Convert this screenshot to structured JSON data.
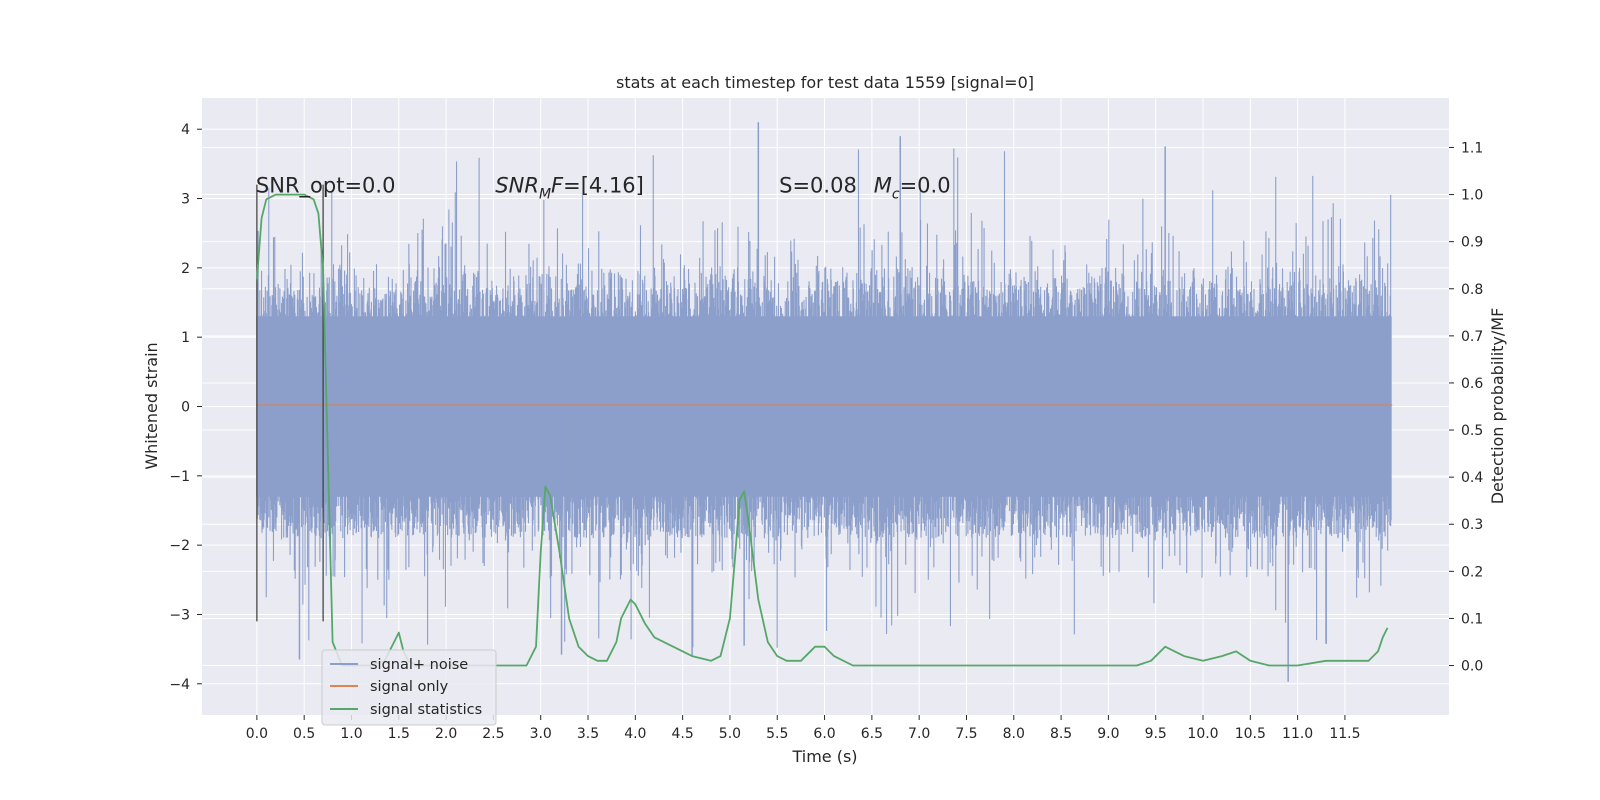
{
  "chart_data": {
    "type": "line",
    "title": "stats at each timestep for test data 1559 [signal=0]",
    "xlabel": "Time (s)",
    "ylabel": "Whitened strain",
    "y2label": "Detection probability/MF",
    "xlim": [
      -0.58,
      12.6
    ],
    "ylim": [
      -4.45,
      4.45
    ],
    "y2lim": [
      -0.105,
      1.205
    ],
    "x_ticks": [
      "0.0",
      "0.5",
      "1.0",
      "1.5",
      "2.0",
      "2.5",
      "3.0",
      "3.5",
      "4.0",
      "4.5",
      "5.0",
      "5.5",
      "6.0",
      "6.5",
      "7.0",
      "7.5",
      "8.0",
      "8.5",
      "9.0",
      "9.5",
      "10.0",
      "10.5",
      "11.0",
      "11.5"
    ],
    "y_ticks": [
      "4",
      "3",
      "2",
      "1",
      "0",
      "−1",
      "−2",
      "−3",
      "−4"
    ],
    "y2_ticks": [
      "1.1",
      "1.0",
      "0.9",
      "0.8",
      "0.7",
      "0.6",
      "0.5",
      "0.4",
      "0.3",
      "0.2",
      "0.1",
      "0.0"
    ],
    "grid": true,
    "legend_position": "lower-left",
    "colors": {
      "background": "#eaeaf2",
      "grid": "#ffffff",
      "noise": "#8c9fcb",
      "signal": "#dd8452",
      "statistics": "#55a868",
      "window": "#3a3a3a"
    },
    "annotations": [
      {
        "text": "SNR_opt=0.0",
        "x": -0.01,
        "y": 3.2
      },
      {
        "text": "SNR_MF=[4.16]",
        "x": 2.52,
        "y": 3.2
      },
      {
        "text": "S=0.08",
        "x": 5.52,
        "y": 3.2
      },
      {
        "text": "M_c=0.0",
        "x": 6.52,
        "y": 3.2
      }
    ],
    "window_markers": {
      "x": [
        0.0,
        0.7
      ],
      "y_range": [
        -3.1,
        3.2
      ]
    },
    "series": [
      {
        "name": "signal+ noise",
        "axis": "left",
        "description_values": {
          "t_range": [
            0.0,
            11.99
          ],
          "envelope": [
            -3.7,
            3.8
          ],
          "core_band": [
            -1.3,
            1.3
          ]
        },
        "peaks": [
          {
            "x": 5.3,
            "y": 4.1
          },
          {
            "x": 6.8,
            "y": 3.9
          },
          {
            "x": 9.6,
            "y": 3.75
          },
          {
            "x": 10.9,
            "y": -3.97
          },
          {
            "x": 0.45,
            "y": -3.65
          },
          {
            "x": 5.15,
            "y": -3.45
          },
          {
            "x": 11.3,
            "y": -3.42
          },
          {
            "x": 3.22,
            "y": -3.58
          },
          {
            "x": 4.6,
            "y": -3.6
          }
        ]
      },
      {
        "name": "signal only",
        "axis": "left",
        "x": [
          0.0,
          12.0
        ],
        "y": [
          0.02,
          0.02
        ]
      },
      {
        "name": "signal statistics",
        "axis": "right",
        "x": [
          0.0,
          0.05,
          0.1,
          0.2,
          0.3,
          0.4,
          0.5,
          0.6,
          0.65,
          0.7,
          0.75,
          0.8,
          0.9,
          1.0,
          1.2,
          1.35,
          1.45,
          1.5,
          1.55,
          1.6,
          1.7,
          2.0,
          2.3,
          2.6,
          2.85,
          2.95,
          3.0,
          3.05,
          3.1,
          3.2,
          3.3,
          3.4,
          3.5,
          3.6,
          3.7,
          3.8,
          3.85,
          3.95,
          4.0,
          4.1,
          4.2,
          4.4,
          4.6,
          4.8,
          4.9,
          5.0,
          5.05,
          5.1,
          5.15,
          5.2,
          5.3,
          5.4,
          5.5,
          5.6,
          5.75,
          5.9,
          6.0,
          6.1,
          6.3,
          6.6,
          7.0,
          8.0,
          8.5,
          9.0,
          9.3,
          9.45,
          9.6,
          9.8,
          10.0,
          10.2,
          10.35,
          10.5,
          10.7,
          11.0,
          11.3,
          11.5,
          11.75,
          11.85,
          11.9,
          11.95
        ],
        "y": [
          0.82,
          0.95,
          0.99,
          1.0,
          1.0,
          1.0,
          1.0,
          0.99,
          0.96,
          0.84,
          0.45,
          0.05,
          0.0,
          0.0,
          0.0,
          0.01,
          0.05,
          0.07,
          0.03,
          0.01,
          0.0,
          0.0,
          0.0,
          0.0,
          0.0,
          0.04,
          0.24,
          0.38,
          0.36,
          0.24,
          0.1,
          0.04,
          0.02,
          0.01,
          0.01,
          0.05,
          0.1,
          0.14,
          0.13,
          0.09,
          0.06,
          0.04,
          0.02,
          0.01,
          0.02,
          0.1,
          0.22,
          0.35,
          0.37,
          0.3,
          0.14,
          0.05,
          0.02,
          0.01,
          0.01,
          0.04,
          0.04,
          0.02,
          0.0,
          0.0,
          0.0,
          0.0,
          0.0,
          0.0,
          0.0,
          0.01,
          0.04,
          0.02,
          0.01,
          0.02,
          0.03,
          0.01,
          0.0,
          0.0,
          0.01,
          0.01,
          0.01,
          0.03,
          0.06,
          0.08
        ]
      }
    ],
    "legend": {
      "entries": [
        "signal+ noise",
        "signal only",
        "signal statistics"
      ]
    }
  }
}
